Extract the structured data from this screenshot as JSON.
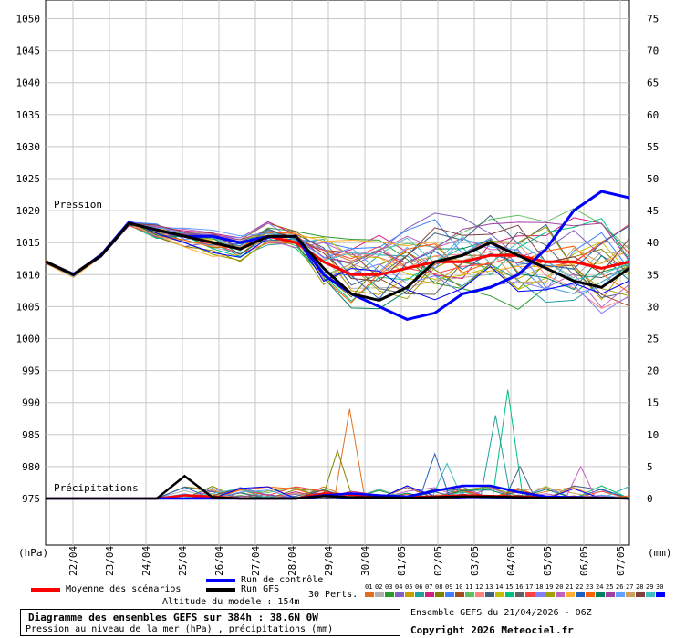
{
  "chart_data": {
    "type": "line",
    "pressure_label": "Pression",
    "precip_label": "Précipitations",
    "left_unit": "(hPa)",
    "right_unit": "(mm)",
    "left_ticks": [
      1050,
      1045,
      1040,
      1035,
      1030,
      1025,
      1020,
      1015,
      1010,
      1005,
      1000,
      995,
      990,
      985,
      980,
      975
    ],
    "right_ticks": [
      75,
      70,
      65,
      60,
      55,
      50,
      45,
      40,
      35,
      30,
      25,
      20,
      15,
      10,
      5,
      0
    ],
    "x_labels": [
      "22/04",
      "23/04",
      "24/04",
      "25/04",
      "26/04",
      "27/04",
      "28/04",
      "29/04",
      "30/04",
      "01/05",
      "02/05",
      "03/05",
      "04/05",
      "05/05",
      "06/05",
      "07/05"
    ],
    "ylim_pressure": [
      970,
      1052
    ],
    "ylim_precip": [
      0,
      75
    ],
    "xlim_hours": [
      0,
      384
    ],
    "legend": {
      "mean": "Moyenne des scénarios",
      "control": "Run de contrôle",
      "gfs": "Run GFS",
      "perts": "30 Perts."
    },
    "pert_numbers": [
      "01",
      "02",
      "03",
      "04",
      "05",
      "06",
      "07",
      "08",
      "09",
      "10",
      "11",
      "12",
      "13",
      "14",
      "15",
      "16",
      "17",
      "18",
      "19",
      "20",
      "21",
      "22",
      "23",
      "24",
      "25",
      "26",
      "27",
      "28",
      "29",
      "30"
    ],
    "pert_colors": [
      "#e07020",
      "#b0b0b0",
      "#2a9a2a",
      "#8060c0",
      "#c8a000",
      "#20a0a0",
      "#d02080",
      "#808000",
      "#4080ff",
      "#a05020",
      "#60c060",
      "#ff8080",
      "#406080",
      "#c0c000",
      "#00c080",
      "#606060",
      "#ff4040",
      "#8080ff",
      "#a0a000",
      "#c060c0",
      "#ffb030",
      "#2060c0",
      "#ff6000",
      "#008060",
      "#a040a0",
      "#60a0ff",
      "#d0a060",
      "#804040",
      "#40c0c0",
      "#0000ff"
    ],
    "colors": {
      "mean": "#ff0000",
      "control": "#0000ff",
      "gfs": "#000000"
    },
    "series": [
      {
        "name": "Moyenne des scénarios",
        "values": [
          1012,
          1010,
          1013,
          1018,
          1017,
          1016,
          1015,
          1014,
          1016,
          1015,
          1012,
          1010,
          1010,
          1011,
          1012,
          1012,
          1013,
          1013,
          1012,
          1012,
          1011,
          1012
        ]
      },
      {
        "name": "Run de contrôle",
        "values": [
          1012,
          1010,
          1013,
          1018,
          1017,
          1016,
          1016,
          1015,
          1016,
          1016,
          1010,
          1007,
          1005,
          1003,
          1004,
          1007,
          1008,
          1010,
          1014,
          1020,
          1023,
          1022
        ]
      },
      {
        "name": "Run GFS",
        "values": [
          1012,
          1010,
          1013,
          1018,
          1017,
          1016,
          1015,
          1014,
          1016,
          1016,
          1011,
          1007,
          1006,
          1008,
          1012,
          1013,
          1015,
          1013,
          1011,
          1009,
          1008,
          1011
        ]
      }
    ],
    "precip_series": [
      {
        "name": "Moyenne des scénarios",
        "values": [
          0,
          0,
          0,
          0,
          0,
          0.5,
          0.3,
          0,
          0,
          0,
          0.8,
          0.6,
          0.3,
          0.2,
          0.3,
          0.5,
          0.4,
          0.3,
          0.2,
          0.2,
          0.1,
          0
        ]
      },
      {
        "name": "Run de contrôle",
        "values": [
          0,
          0,
          0,
          0,
          0,
          0,
          0,
          0,
          0,
          0,
          0.5,
          0.8,
          0.5,
          0.3,
          1.2,
          2.0,
          2.0,
          1.0,
          0.3,
          0.2,
          0.1,
          0
        ]
      },
      {
        "name": "Run GFS",
        "values": [
          0,
          0,
          0,
          0,
          0,
          3.5,
          0.2,
          0,
          0,
          0,
          0.4,
          0.2,
          0.2,
          0.1,
          0.2,
          0.3,
          0.3,
          0.2,
          0.1,
          0.1,
          0.1,
          0
        ]
      }
    ],
    "member_precip_peaks": [
      [
        200,
        14
      ],
      [
        192,
        7.5
      ],
      [
        304,
        17
      ],
      [
        256,
        7
      ],
      [
        264,
        5.5
      ],
      [
        296,
        13
      ],
      [
        312,
        5
      ],
      [
        352,
        5
      ]
    ]
  },
  "altitude": "Altitude du modele : 154m",
  "info_title": "Diagramme des ensembles GEFS sur 384h : 38.6N 0W",
  "info_sub": "Pression au niveau de la mer (hPa) , précipitations (mm)",
  "ensemble_date": "Ensemble GEFS du 21/04/2026 - 06Z",
  "copyright": "Copyright 2026 Meteociel.fr"
}
